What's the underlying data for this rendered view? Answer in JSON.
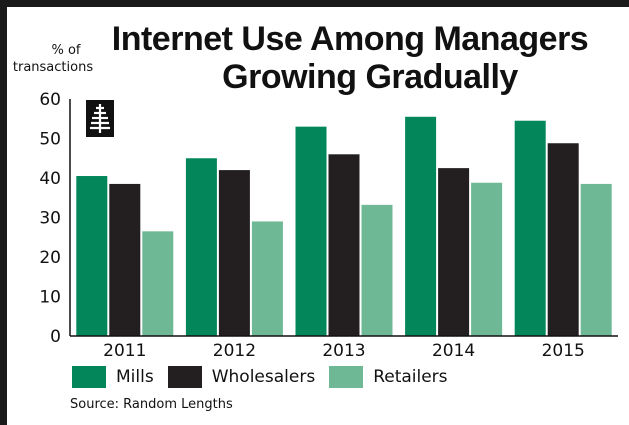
{
  "title_line1": "Internet Use Among Managers",
  "title_line2": "Growing Gradually",
  "source": "Source: Random Lengths",
  "colors": {
    "mills": "#03865a",
    "wholesalers": "#231f20",
    "retailers": "#6fb895",
    "frame": "#1a1a1a"
  },
  "icons": {
    "logo": "tree-logo-icon"
  },
  "chart_data": {
    "type": "bar",
    "ylabel": "% of transactions",
    "ylabel_lines": [
      "% of",
      "transactions"
    ],
    "xlabel": "",
    "categories": [
      "2011",
      "2012",
      "2013",
      "2014",
      "2015"
    ],
    "ylim": [
      0,
      60
    ],
    "yticks": [
      0,
      10,
      20,
      30,
      40,
      50,
      60
    ],
    "grid": false,
    "legend_placement": "bottom",
    "series": [
      {
        "name": "Mills",
        "color": "#03865a",
        "values": [
          40.5,
          45,
          53,
          55.5,
          54.5
        ]
      },
      {
        "name": "Wholesalers",
        "color": "#231f20",
        "values": [
          38.5,
          42,
          46,
          42.5,
          48.8
        ]
      },
      {
        "name": "Retailers",
        "color": "#6fb895",
        "values": [
          26.5,
          29,
          33.2,
          38.8,
          38.5
        ]
      }
    ]
  }
}
